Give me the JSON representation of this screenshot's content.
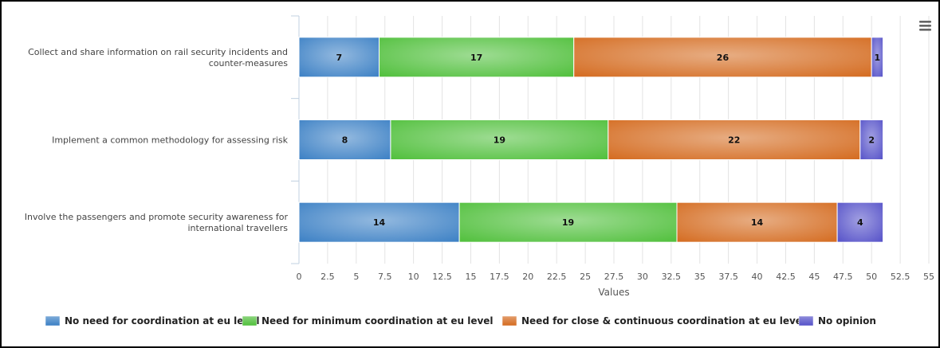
{
  "chart_data": {
    "type": "bar",
    "orientation": "horizontal",
    "stacked": true,
    "title": "",
    "xlabel": "Values",
    "categories": [
      "Collect and share information on rail security incidents and counter-measures",
      "Implement a common methodology for assessing risk",
      "Involve the passengers and promote security awareness for international travellers"
    ],
    "category_lines": [
      [
        "Collect and share information on rail security incidents and",
        "counter-measures"
      ],
      [
        "Implement a common methodology for assessing risk"
      ],
      [
        "Involve the passengers and promote security awareness for",
        "international travellers"
      ]
    ],
    "series": [
      {
        "name": "No need for coordination at eu level",
        "color": "#3a7fc4",
        "values": [
          7,
          8,
          14
        ]
      },
      {
        "name": "Need for minimum coordination at eu level",
        "color": "#4fbf3a",
        "values": [
          17,
          19,
          19
        ]
      },
      {
        "name": "Need for close & continuous coordination at eu level",
        "color": "#d46a1e",
        "values": [
          26,
          22,
          14
        ]
      },
      {
        "name": "No opinion",
        "color": "#5450c8",
        "values": [
          1,
          2,
          4
        ]
      }
    ],
    "xlim": [
      0,
      55
    ],
    "xticks": [
      0,
      2.5,
      5,
      7.5,
      10,
      12.5,
      15,
      17.5,
      20,
      22.5,
      25,
      27.5,
      30,
      32.5,
      35,
      37.5,
      40,
      42.5,
      45,
      47.5,
      50,
      52.5,
      55
    ],
    "xtick_labels": [
      "0",
      "2.5",
      "5",
      "7.5",
      "10",
      "12.5",
      "15",
      "17.5",
      "20",
      "22.5",
      "25",
      "27.5",
      "30",
      "32.5",
      "35",
      "37.5",
      "40",
      "42.5",
      "45",
      "47.5",
      "50",
      "52.5",
      "55"
    ],
    "grid": true,
    "legend": "bottom"
  },
  "toolbar": {
    "menu_icon": "hamburger-menu-icon"
  }
}
